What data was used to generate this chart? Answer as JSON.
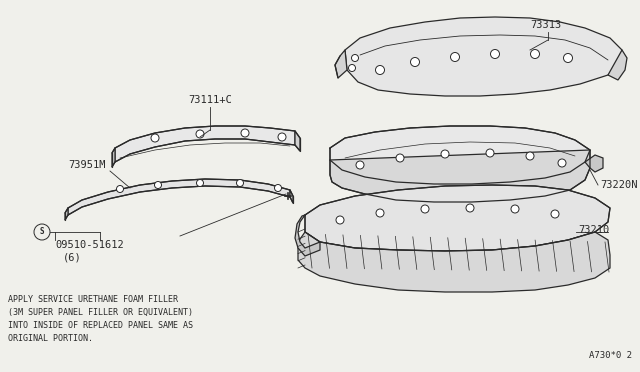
{
  "bg_color": "#f0f0eb",
  "line_color": "#2a2a2a",
  "text_color": "#2a2a2a",
  "note_lines": [
    "APPLY SERVICE URETHANE FOAM FILLER",
    "(3M SUPER PANEL FILLER OR EQUIVALENT)",
    "INTO INSIDE OF REPLACED PANEL SAME AS",
    "ORIGINAL PORTION."
  ],
  "diagram_id": "A730*0 2",
  "label_73111": "73111+C",
  "label_73951": "73951M",
  "label_09510": "09510-51612",
  "label_09510_qty": "(6)",
  "label_73313": "73313",
  "label_73220": "73220N",
  "label_73210": "73210"
}
